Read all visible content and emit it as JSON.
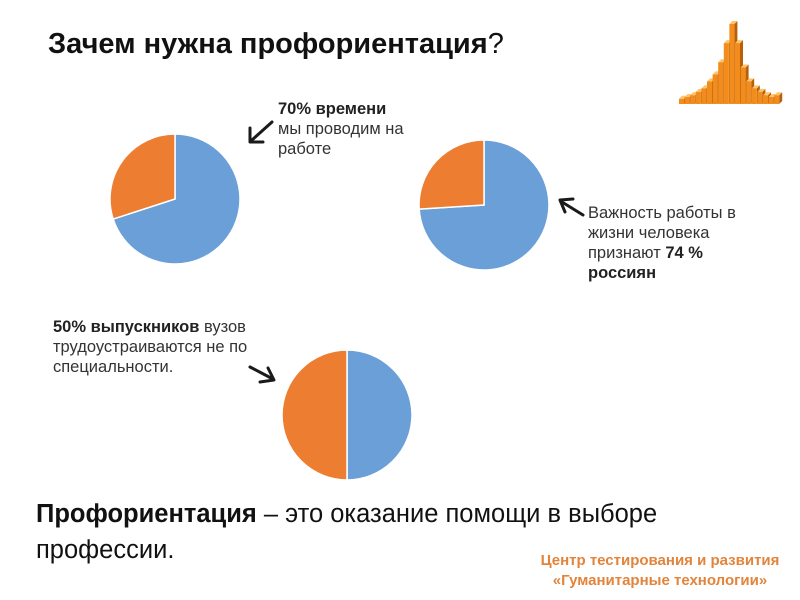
{
  "title": {
    "main": "Зачем нужна профориентация",
    "suffix": "?"
  },
  "colors": {
    "blue": "#6a9fd8",
    "orange": "#ed7d31",
    "logo_orange": "#f28c1c"
  },
  "logo": {
    "icon": "bar-histogram-logo-icon",
    "bars": [
      3,
      4,
      5,
      7,
      9,
      13,
      17,
      24,
      35,
      46,
      35,
      21,
      13,
      9,
      7,
      5,
      4,
      5
    ]
  },
  "chart_data": [
    {
      "type": "pie",
      "series": [
        {
          "values": [
            70,
            30
          ]
        }
      ],
      "note": {
        "bold": "70% времени",
        "rest": " мы проводим на работе"
      }
    },
    {
      "type": "pie",
      "series": [
        {
          "values": [
            74,
            26
          ]
        }
      ],
      "note": {
        "prefix": "Важность работы в жизни человека признают ",
        "bold": "74 % россиян"
      }
    },
    {
      "type": "pie",
      "series": [
        {
          "values": [
            50,
            50
          ]
        }
      ],
      "note": {
        "bold": "50% выпускников",
        "rest": " вузов трудоустраиваются не по специальности."
      }
    }
  ],
  "definition": {
    "term": "Профориентация",
    "text": " – это оказание помощи в выборе профессии."
  },
  "footer": "Центр тестирования и развития «Гуманитарные технологии»"
}
